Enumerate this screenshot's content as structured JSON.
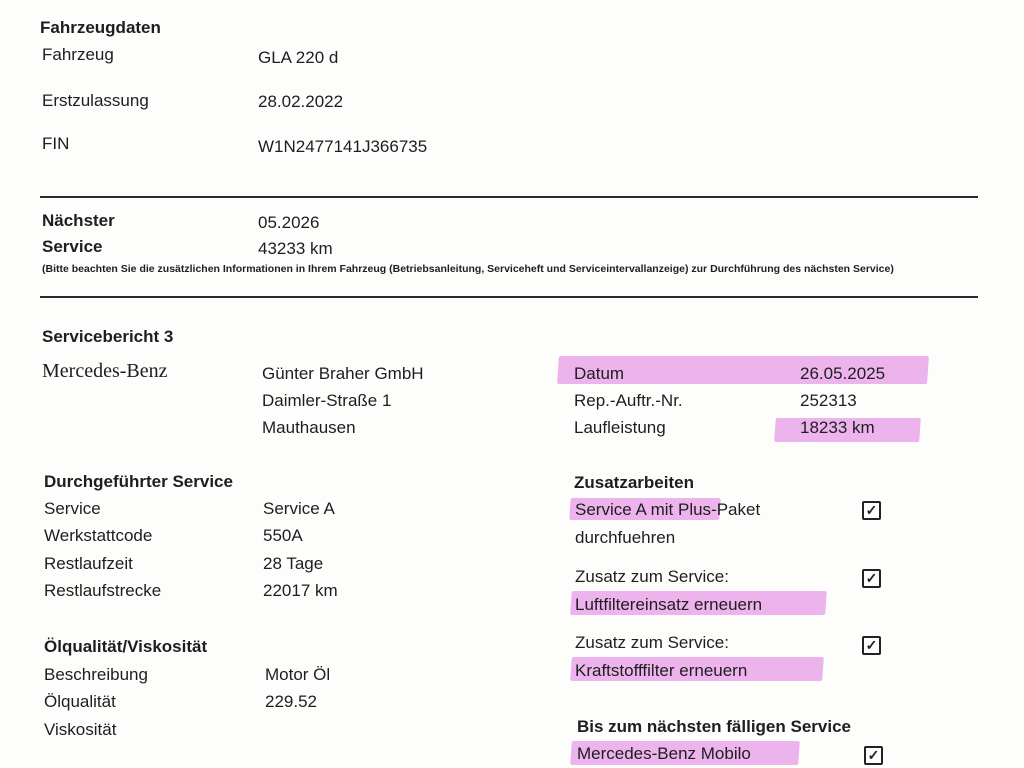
{
  "vehicle": {
    "heading": "Fahrzeugdaten",
    "rows": [
      {
        "label": "Fahrzeug",
        "value": "GLA 220 d"
      },
      {
        "label": "Erstzulassung",
        "value": "28.02.2022"
      },
      {
        "label": "FIN",
        "value": "W1N2477141J366735"
      }
    ]
  },
  "next_service": {
    "label_line1": "Nächster",
    "label_line2": "Service",
    "date": "05.2026",
    "mileage": "43233 km",
    "note": "(Bitte beachten Sie die zusätzlichen Informationen in Ihrem Fahrzeug (Betriebsanleitung, Serviceheft und Serviceintervallanzeige) zur Durchführung des nächsten Service)"
  },
  "report": {
    "heading": "Servicebericht 3",
    "brand": "Mercedes-Benz",
    "dealer": [
      "Günter Braher GmbH",
      "Daimler-Straße 1",
      "Mauthausen"
    ],
    "meta": [
      {
        "label": "Datum",
        "value": "26.05.2025"
      },
      {
        "label": "Rep.-Auftr.-Nr.",
        "value": "252313"
      },
      {
        "label": "Laufleistung",
        "value": "18233 km"
      }
    ],
    "highlight_color": "#e9a6e9"
  },
  "performed": {
    "heading": "Durchgeführter Service",
    "rows": [
      {
        "label": "Service",
        "value": "Service A"
      },
      {
        "label": "Werkstattcode",
        "value": "550A"
      },
      {
        "label": "Restlaufzeit",
        "value": "28 Tage"
      },
      {
        "label": "Restlaufstrecke",
        "value": "22017 km"
      }
    ]
  },
  "oil": {
    "heading": "Ölqualität/Viskosität",
    "rows": [
      {
        "label": "Beschreibung",
        "value": "Motor Öl"
      },
      {
        "label": "Ölqualität",
        "value": "229.52"
      },
      {
        "label": "Viskosität",
        "value": ""
      }
    ]
  },
  "extra": {
    "heading": "Zusatzarbeiten",
    "items": [
      {
        "line1": "Service A mit Plus-Paket",
        "line2": "durchfuehren",
        "checked": true
      },
      {
        "line1": "Zusatz zum Service:",
        "line2": "Luftfiltereinsatz erneuern",
        "checked": true
      },
      {
        "line1": "Zusatz zum Service:",
        "line2": "Kraftstofffilter erneuern",
        "checked": true
      }
    ],
    "until_heading": "Bis zum nächsten fälligen Service",
    "until_item": {
      "label": "Mercedes-Benz Mobilo",
      "checked": true
    },
    "check_glyph": "✓"
  }
}
